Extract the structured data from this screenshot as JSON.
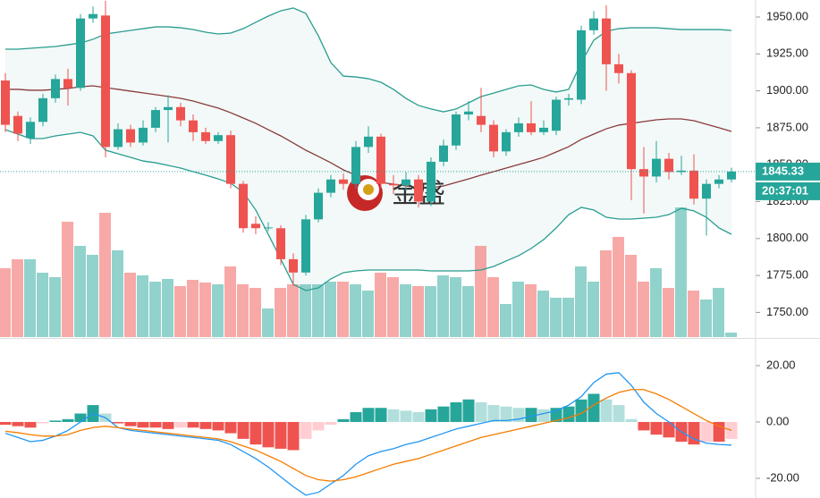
{
  "chart_data": {
    "type": "candlestick",
    "up_color": "#26a69a",
    "down_color": "#ef5350",
    "ylim": [
      1733.3,
      1961.5
    ],
    "yticks": [
      {
        "value": 1750,
        "label": "1750.00"
      },
      {
        "value": 1775,
        "label": "1775.00"
      },
      {
        "value": 1800,
        "label": "1800.00"
      },
      {
        "value": 1825,
        "label": "1825.00"
      },
      {
        "value": 1850,
        "label": "1850.00"
      },
      {
        "value": 1875,
        "label": "1875.00"
      },
      {
        "value": 1900,
        "label": "1900.00"
      },
      {
        "value": 1925,
        "label": "1925.00"
      },
      {
        "value": 1950,
        "label": "1950.00"
      }
    ],
    "open": [
      1907,
      1883,
      1868,
      1879,
      1895,
      1908,
      1902,
      1949,
      1951,
      1862,
      1874,
      1865,
      1875,
      1887,
      1889,
      1880,
      1872,
      1866,
      1870,
      1837,
      1810,
      1807,
      1807,
      1786,
      1777,
      1813,
      1831,
      1840,
      1837,
      1862,
      1869,
      1837,
      1836,
      1840,
      1825,
      1852,
      1863,
      1884,
      1883,
      1877,
      1859,
      1872,
      1878,
      1872,
      1873,
      1894,
      1894,
      1941,
      1949,
      1918,
      1912,
      1847,
      1842,
      1854,
      1845,
      1846,
      1827,
      1837,
      1840
    ],
    "high": [
      1912,
      1886,
      1882,
      1898,
      1911,
      1915,
      1952,
      1957,
      1961,
      1878,
      1877,
      1880,
      1889,
      1897,
      1892,
      1884,
      1875,
      1872,
      1873,
      1839,
      1815,
      1811,
      1809,
      1790,
      1816,
      1834,
      1843,
      1844,
      1866,
      1876,
      1871,
      1843,
      1845,
      1843,
      1855,
      1867,
      1886,
      1893,
      1902,
      1880,
      1874,
      1882,
      1893,
      1880,
      1896,
      1898,
      1944,
      1954,
      1958,
      1925,
      1914,
      1862,
      1866,
      1858,
      1856,
      1857,
      1840,
      1843,
      1848
    ],
    "low": [
      1872,
      1866,
      1864,
      1876,
      1892,
      1890,
      1900,
      1946,
      1855,
      1860,
      1862,
      1863,
      1872,
      1865,
      1876,
      1866,
      1864,
      1864,
      1834,
      1804,
      1803,
      1805,
      1782,
      1768,
      1775,
      1811,
      1828,
      1833,
      1834,
      1858,
      1834,
      1830,
      1832,
      1821,
      1822,
      1849,
      1860,
      1880,
      1872,
      1855,
      1856,
      1869,
      1870,
      1870,
      1870,
      1890,
      1891,
      1938,
      1900,
      1905,
      1826,
      1817,
      1838,
      1840,
      1843,
      1823,
      1802,
      1834,
      1838
    ],
    "close": [
      1877,
      1871,
      1879,
      1895,
      1908,
      1902,
      1949,
      1952,
      1862,
      1874,
      1865,
      1875,
      1887,
      1889,
      1880,
      1872,
      1866,
      1870,
      1837,
      1807,
      1807,
      1807.5,
      1786,
      1777,
      1813,
      1831,
      1840,
      1837,
      1862,
      1869,
      1837,
      1836,
      1840,
      1825,
      1852,
      1863,
      1884,
      1886,
      1877,
      1859,
      1872,
      1878,
      1872,
      1875,
      1894,
      1895,
      1941,
      1949,
      1918,
      1912,
      1847,
      1842,
      1854,
      1845,
      1846,
      1827,
      1837,
      1840,
      1845.33
    ],
    "volume": [
      77,
      87,
      87,
      72,
      67,
      129,
      102,
      92,
      139,
      97,
      72,
      69,
      62,
      65,
      57,
      64,
      61,
      59,
      79,
      59,
      55,
      32,
      55,
      59,
      59,
      59,
      62,
      62,
      59,
      52,
      72,
      67,
      59,
      57,
      57,
      69,
      67,
      57,
      102,
      67,
      37,
      62,
      59,
      52,
      44,
      44,
      79,
      62,
      97,
      112,
      92,
      62,
      77,
      55,
      145,
      52,
      42,
      55,
      5
    ],
    "bollinger": {
      "color": "#2a9d8f",
      "middle_color": "#8b3a3a",
      "upper": [
        1928.2,
        1928.2,
        1928.8,
        1929.4,
        1930.0,
        1931.2,
        1932.4,
        1934.9,
        1938.5,
        1939.7,
        1940.9,
        1942.1,
        1943.3,
        1943.3,
        1942.7,
        1941.5,
        1939.7,
        1938.5,
        1939.1,
        1942.1,
        1946.4,
        1950.6,
        1954.2,
        1956.1,
        1952.4,
        1937.3,
        1919.1,
        1910.0,
        1909.4,
        1908.2,
        1905.8,
        1901.0,
        1894.9,
        1890.1,
        1887.7,
        1885.8,
        1887.7,
        1891.9,
        1896.1,
        1898.5,
        1901.0,
        1903.4,
        1904.0,
        1901.0,
        1899.2,
        1901.0,
        1919.1,
        1934.3,
        1940.3,
        1942.1,
        1942.7,
        1942.7,
        1942.7,
        1942.1,
        1941.5,
        1941.5,
        1941.5,
        1941.5,
        1940.9
      ],
      "middle": [
        1901.0,
        1901.0,
        1900.4,
        1900.4,
        1901.0,
        1901.6,
        1902.8,
        1903.4,
        1902.2,
        1901.0,
        1899.8,
        1898.6,
        1897.4,
        1896.2,
        1894.9,
        1893.1,
        1890.7,
        1888.3,
        1885.2,
        1881.6,
        1878.0,
        1873.7,
        1869.5,
        1864.7,
        1859.8,
        1855.6,
        1851.3,
        1846.5,
        1842.9,
        1840.4,
        1838.0,
        1836.8,
        1835.6,
        1834.4,
        1834.4,
        1835.6,
        1838.0,
        1840.4,
        1842.9,
        1845.3,
        1847.7,
        1850.1,
        1852.5,
        1855.0,
        1858.6,
        1862.2,
        1867.1,
        1870.7,
        1874.3,
        1876.8,
        1878.0,
        1879.2,
        1880.4,
        1881.0,
        1881.0,
        1879.8,
        1877.4,
        1875.0,
        1872.5
      ],
      "lower": [
        1873.7,
        1870.7,
        1867.7,
        1867.7,
        1869.5,
        1870.7,
        1871.9,
        1869.5,
        1859.8,
        1857.4,
        1855.0,
        1852.5,
        1851.3,
        1849.5,
        1847.7,
        1845.3,
        1842.9,
        1840.4,
        1837.4,
        1831.4,
        1819.3,
        1802.9,
        1786.0,
        1769.0,
        1764.8,
        1766.6,
        1772.7,
        1776.9,
        1778.1,
        1778.7,
        1778.7,
        1778.7,
        1778.7,
        1778.7,
        1778.1,
        1778.1,
        1778.1,
        1778.1,
        1778.7,
        1781.1,
        1784.8,
        1788.4,
        1793.3,
        1799.3,
        1807.2,
        1816.2,
        1821.1,
        1819.3,
        1814.4,
        1813.2,
        1813.2,
        1813.8,
        1814.4,
        1816.2,
        1820.5,
        1818.7,
        1814.4,
        1807.2,
        1802.9
      ]
    },
    "last_price_label": "1845.33",
    "countdown": "20:37:01",
    "watermark": "金盛",
    "macd": {
      "ylim": [
        -27,
        29.2
      ],
      "yticks": [
        {
          "value": -20,
          "label": "-20.00"
        },
        {
          "value": 0,
          "label": "0.00"
        },
        {
          "value": 20,
          "label": "20.00"
        }
      ],
      "dif_color": "#2196f3",
      "dea_color": "#f57c00",
      "histogram": [
        -1,
        -1.5,
        -2,
        -0.5,
        0.5,
        1,
        3,
        6,
        3,
        -0.5,
        -1.5,
        -2,
        -2,
        -2.5,
        -2,
        -2,
        -2.5,
        -3,
        -4,
        -6,
        -8,
        -9,
        -9.5,
        -10,
        -6,
        -3,
        -1,
        1,
        3.5,
        5,
        5,
        4.5,
        4,
        3.5,
        4.5,
        5.5,
        7,
        8,
        7,
        6,
        5.5,
        5,
        5,
        4.5,
        5,
        5.5,
        8,
        10,
        8,
        6,
        1,
        -3,
        -4.5,
        -5.5,
        -7,
        -8,
        -7,
        -7,
        -6
      ],
      "dif": [
        -4,
        -5.5,
        -7,
        -6.5,
        -5,
        -3,
        0,
        3,
        1.5,
        -2,
        -3,
        -3.5,
        -4,
        -4.5,
        -5,
        -5.5,
        -6,
        -6.5,
        -8,
        -10.5,
        -13,
        -16,
        -19.5,
        -23,
        -26,
        -25,
        -22,
        -19,
        -15,
        -12,
        -10.5,
        -9.5,
        -8,
        -7,
        -5.5,
        -4,
        -2.5,
        -1.5,
        -0.5,
        0.5,
        0.5,
        1,
        2,
        3,
        4,
        6,
        9,
        14,
        17,
        17.5,
        13,
        7,
        3,
        0,
        -3.5,
        -6,
        -7.5,
        -8,
        -8.2
      ],
      "dea": [
        -3.3,
        -3.8,
        -4.5,
        -5,
        -5,
        -4.5,
        -3,
        -2,
        -1.5,
        -2,
        -2.5,
        -3,
        -3.5,
        -4,
        -4.5,
        -5,
        -5.5,
        -6,
        -7,
        -8.5,
        -10,
        -12,
        -14,
        -16.5,
        -19,
        -20.5,
        -21,
        -20.5,
        -19.5,
        -18,
        -16.5,
        -15,
        -14,
        -13,
        -11.5,
        -10,
        -8.5,
        -7,
        -5.5,
        -4.5,
        -3.5,
        -2.5,
        -1.5,
        -0.5,
        0.5,
        1.5,
        3,
        6,
        8.5,
        10.5,
        11.5,
        11.5,
        10,
        8,
        5.5,
        3,
        0.5,
        -1.5,
        -3
      ]
    }
  }
}
